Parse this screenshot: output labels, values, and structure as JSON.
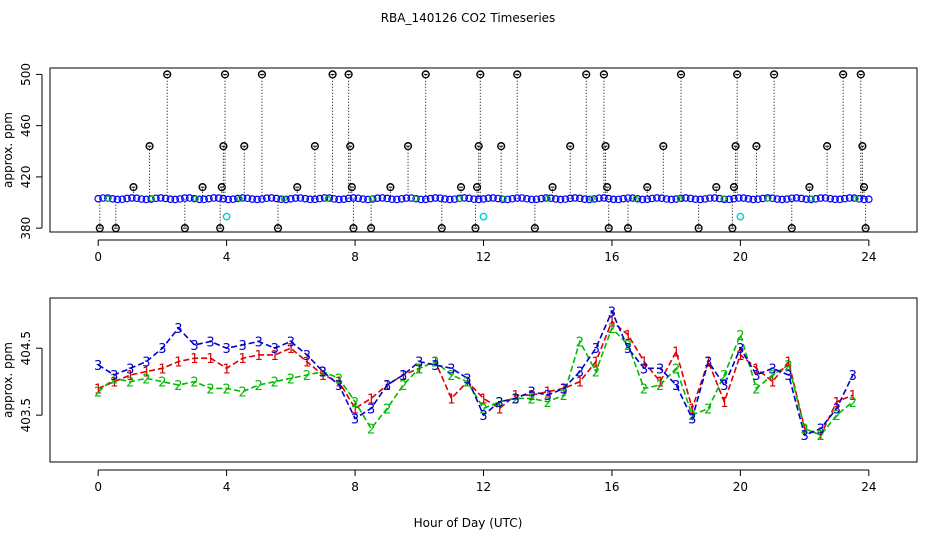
{
  "chart_data": [
    {
      "type": "scatter",
      "panel": "top",
      "title": "RBA_140126  CO2 Timeseries",
      "xlabel": "",
      "ylabel": "approx. ppm",
      "xlim": [
        -1.5,
        25.5
      ],
      "ylim": [
        377,
        505
      ],
      "xticks": [
        0,
        4,
        8,
        12,
        16,
        20,
        24
      ],
      "yticks": [
        380,
        420,
        460,
        500
      ],
      "xticklabels": [
        "0",
        "4",
        "8",
        "12",
        "16",
        "20",
        "24"
      ],
      "yticklabels": [
        "380",
        "420",
        "460",
        "500"
      ],
      "colors": {
        "base": "#0000ff",
        "spike": "#000000",
        "minor": "#00c000",
        "calibration": "#00cccc",
        "accent": "#ff0000"
      },
      "baseline": {
        "x_start": 0.0,
        "x_end": 24.0,
        "step": 0.15,
        "value": 403,
        "description": "continuous blue series near 403 ppm"
      },
      "spikes": [
        {
          "x": 0.05,
          "y": 380
        },
        {
          "x": 0.55,
          "y": 380
        },
        {
          "x": 1.1,
          "y": 412
        },
        {
          "x": 1.6,
          "y": 444
        },
        {
          "x": 2.15,
          "y": 500
        },
        {
          "x": 2.7,
          "y": 380
        },
        {
          "x": 3.25,
          "y": 412
        },
        {
          "x": 3.8,
          "y": 380
        },
        {
          "x": 3.85,
          "y": 412
        },
        {
          "x": 3.9,
          "y": 444
        },
        {
          "x": 3.95,
          "y": 500
        },
        {
          "x": 4.55,
          "y": 444
        },
        {
          "x": 5.1,
          "y": 500
        },
        {
          "x": 5.6,
          "y": 380
        },
        {
          "x": 6.2,
          "y": 412
        },
        {
          "x": 6.75,
          "y": 444
        },
        {
          "x": 7.3,
          "y": 500
        },
        {
          "x": 7.8,
          "y": 500
        },
        {
          "x": 7.85,
          "y": 444
        },
        {
          "x": 7.9,
          "y": 412
        },
        {
          "x": 7.95,
          "y": 380
        },
        {
          "x": 8.5,
          "y": 380
        },
        {
          "x": 9.1,
          "y": 412
        },
        {
          "x": 9.65,
          "y": 444
        },
        {
          "x": 10.2,
          "y": 500
        },
        {
          "x": 10.7,
          "y": 380
        },
        {
          "x": 11.3,
          "y": 412
        },
        {
          "x": 11.75,
          "y": 380
        },
        {
          "x": 11.8,
          "y": 412
        },
        {
          "x": 11.85,
          "y": 444
        },
        {
          "x": 11.9,
          "y": 500
        },
        {
          "x": 12.55,
          "y": 444
        },
        {
          "x": 13.05,
          "y": 500
        },
        {
          "x": 13.6,
          "y": 380
        },
        {
          "x": 14.15,
          "y": 412
        },
        {
          "x": 14.7,
          "y": 444
        },
        {
          "x": 15.2,
          "y": 500
        },
        {
          "x": 15.75,
          "y": 500
        },
        {
          "x": 15.8,
          "y": 444
        },
        {
          "x": 15.85,
          "y": 412
        },
        {
          "x": 15.9,
          "y": 380
        },
        {
          "x": 16.5,
          "y": 380
        },
        {
          "x": 17.1,
          "y": 412
        },
        {
          "x": 17.6,
          "y": 444
        },
        {
          "x": 18.15,
          "y": 500
        },
        {
          "x": 18.7,
          "y": 380
        },
        {
          "x": 19.25,
          "y": 412
        },
        {
          "x": 19.75,
          "y": 380
        },
        {
          "x": 19.8,
          "y": 412
        },
        {
          "x": 19.85,
          "y": 444
        },
        {
          "x": 19.9,
          "y": 500
        },
        {
          "x": 20.5,
          "y": 444
        },
        {
          "x": 21.05,
          "y": 500
        },
        {
          "x": 21.6,
          "y": 380
        },
        {
          "x": 22.15,
          "y": 412
        },
        {
          "x": 22.7,
          "y": 444
        },
        {
          "x": 23.2,
          "y": 500
        },
        {
          "x": 23.75,
          "y": 500
        },
        {
          "x": 23.8,
          "y": 444
        },
        {
          "x": 23.85,
          "y": 412
        },
        {
          "x": 23.9,
          "y": 380
        }
      ],
      "calibration_points": [
        {
          "x": 4.0,
          "y": 389
        },
        {
          "x": 12.0,
          "y": 389
        },
        {
          "x": 20.0,
          "y": 389
        }
      ]
    },
    {
      "type": "line",
      "panel": "bottom",
      "title": "",
      "xlabel": "Hour of Day (UTC)",
      "ylabel": "approx. ppm",
      "xlim": [
        -1.5,
        25.5
      ],
      "ylim": [
        402.8,
        405.25
      ],
      "xticks": [
        0,
        4,
        8,
        12,
        16,
        20,
        24
      ],
      "yticks": [
        403.5,
        404.5
      ],
      "xticklabels": [
        "0",
        "4",
        "8",
        "12",
        "16",
        "20",
        "24"
      ],
      "yticklabels": [
        "403.5",
        "404.5"
      ],
      "x": [
        0.0,
        0.5,
        1.0,
        1.5,
        2.0,
        2.5,
        3.0,
        3.5,
        4.0,
        4.5,
        5.0,
        5.5,
        6.0,
        6.5,
        7.0,
        7.5,
        8.0,
        8.5,
        9.0,
        9.5,
        10.0,
        10.5,
        11.0,
        11.5,
        12.0,
        12.5,
        13.0,
        13.5,
        14.0,
        14.5,
        15.0,
        15.5,
        16.0,
        16.5,
        17.0,
        17.5,
        18.0,
        18.5,
        19.0,
        19.5,
        20.0,
        20.5,
        21.0,
        21.5,
        22.0,
        22.5,
        23.0,
        23.5
      ],
      "series": [
        {
          "name": "1",
          "marker": "1",
          "color": "#dd0000",
          "values": [
            403.9,
            404.0,
            404.1,
            404.15,
            404.2,
            404.3,
            404.35,
            404.35,
            404.2,
            404.35,
            404.4,
            404.4,
            404.5,
            404.3,
            404.1,
            404.0,
            403.6,
            403.75,
            403.95,
            404.1,
            404.2,
            404.3,
            403.75,
            404.0,
            403.75,
            403.6,
            403.8,
            403.8,
            403.85,
            403.9,
            404.0,
            404.3,
            404.9,
            404.7,
            404.3,
            404.0,
            404.45,
            403.6,
            404.3,
            403.7,
            404.4,
            404.2,
            404.0,
            404.3,
            403.3,
            403.2,
            403.7,
            403.8
          ]
        },
        {
          "name": "2",
          "marker": "2",
          "color": "#00bb00",
          "values": [
            403.85,
            404.05,
            404.0,
            404.05,
            404.0,
            403.95,
            404.0,
            403.9,
            403.9,
            403.85,
            403.95,
            404.0,
            404.05,
            404.1,
            404.15,
            404.05,
            403.7,
            403.3,
            403.6,
            403.95,
            404.2,
            404.3,
            404.1,
            404.0,
            403.6,
            403.7,
            403.75,
            403.75,
            403.7,
            403.8,
            404.6,
            404.15,
            404.8,
            404.55,
            403.9,
            403.95,
            404.2,
            403.5,
            403.6,
            404.1,
            404.7,
            403.9,
            404.1,
            404.25,
            403.3,
            403.2,
            403.5,
            403.7
          ]
        },
        {
          "name": "3",
          "marker": "3",
          "color": "#0000cc",
          "values": [
            404.25,
            404.1,
            404.2,
            404.3,
            404.5,
            404.8,
            404.55,
            404.6,
            404.5,
            404.55,
            404.6,
            404.5,
            404.6,
            404.4,
            404.15,
            403.95,
            403.45,
            403.6,
            403.95,
            404.1,
            404.3,
            404.25,
            404.2,
            404.05,
            403.5,
            403.7,
            403.75,
            403.85,
            403.8,
            403.9,
            404.15,
            404.5,
            405.05,
            404.5,
            404.2,
            404.2,
            403.95,
            403.45,
            404.3,
            403.95,
            404.5,
            404.1,
            404.2,
            404.1,
            403.2,
            403.3,
            403.6,
            404.1
          ]
        }
      ]
    }
  ]
}
